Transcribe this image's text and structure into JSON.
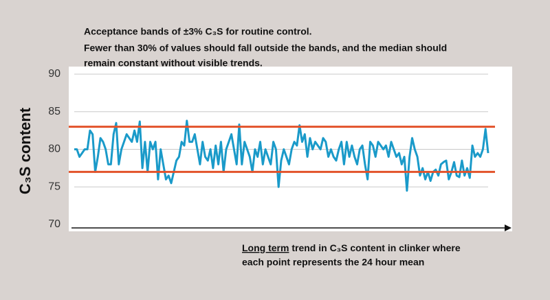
{
  "chart_data": {
    "type": "line",
    "title": [
      "Acceptance bands of ±3% C₃S for routine control.",
      "Fewer than 30%  of values should fall outside the bands, and the median should",
      "remain constant without visible trends."
    ],
    "ylabel": "C₃S content",
    "annotation": [
      "Long term",
      " trend in C₃S content in clinker where",
      "each point represents the 24 hour mean"
    ],
    "ylim": [
      70,
      90
    ],
    "yticks": [
      70,
      75,
      80,
      85,
      90
    ],
    "grid": true,
    "color": "#1a9ac9",
    "bands": [
      {
        "value": 83,
        "color": "#e2522a"
      },
      {
        "value": 77,
        "color": "#e2522a"
      }
    ],
    "values": [
      80,
      80,
      79,
      79.5,
      80,
      80,
      82.5,
      82,
      77,
      79,
      81.5,
      81,
      80,
      78,
      78,
      82,
      83.5,
      78,
      80,
      81,
      82,
      81.5,
      81,
      82.5,
      81,
      83.7,
      77.5,
      81,
      77,
      81,
      80,
      81,
      76,
      80,
      78,
      76,
      76.5,
      75.5,
      77,
      78.5,
      79,
      81,
      80.5,
      83.8,
      81,
      81,
      82,
      80,
      78,
      81,
      79,
      78.5,
      80,
      77.5,
      80.5,
      78,
      81,
      77,
      80,
      81,
      82,
      80,
      78,
      83.3,
      78,
      81,
      80,
      79,
      77,
      80,
      79,
      81,
      78,
      80,
      79,
      78,
      81,
      80,
      75,
      78.5,
      80,
      79,
      78,
      80,
      81,
      80.5,
      83.2,
      81,
      82,
      79,
      81.5,
      80,
      81,
      80.5,
      80,
      81.5,
      81,
      79,
      80,
      79,
      78.5,
      80,
      81,
      78,
      81,
      79,
      80.5,
      79,
      78,
      80,
      80.5,
      78,
      76,
      81,
      80.5,
      79,
      81,
      80.5,
      80,
      80.5,
      79,
      81,
      80,
      79,
      79.5,
      78,
      79,
      74.5,
      79,
      81.5,
      80,
      79,
      76.5,
      77.5,
      76,
      77,
      75.8,
      77,
      77.3,
      76.5,
      78,
      78.3,
      78.5,
      76,
      77,
      78.3,
      76.5,
      76.3,
      78.5,
      76.5,
      77.5,
      76.2,
      80.5,
      79,
      79.5,
      79,
      80,
      82.7,
      79.5
    ]
  }
}
